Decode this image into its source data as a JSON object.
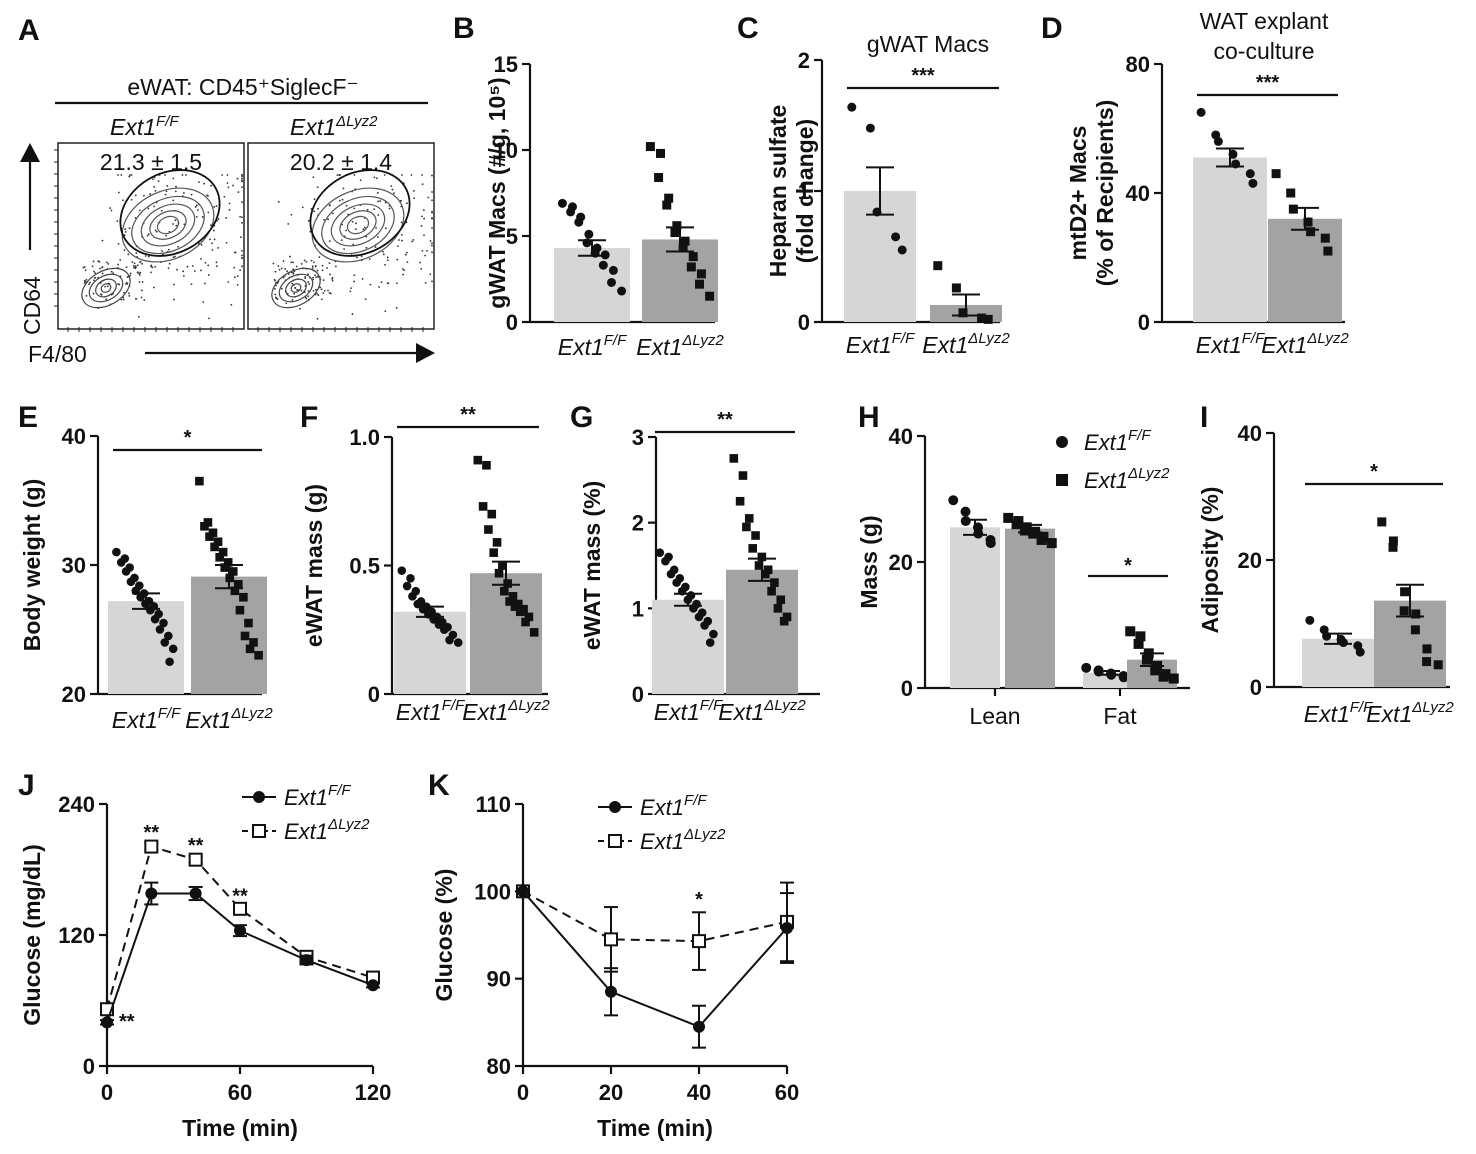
{
  "colors": {
    "light_bar": "#d6d6d6",
    "dark_bar": "#a3a3a3",
    "ink": "#111111"
  },
  "genotypes": {
    "ff_base": "Ext1",
    "ff_sup": "F/F",
    "ko_base": "Ext1",
    "ko_sup": "ΔLyz2"
  },
  "panel_a": {
    "letter": "A",
    "header": "eWAT: CD45⁺SiglecF⁻",
    "ylabel": "CD64",
    "xlabel": "F4/80",
    "left_pct": "21.3 ± 1.5",
    "right_pct": "20.2 ± 1.4"
  },
  "chart_data": [
    {
      "id": "B",
      "type": "bar",
      "letter": "B",
      "title": "",
      "ylabel": "gWAT Macs (#/g, 10⁵)",
      "ylim": [
        0,
        15
      ],
      "yticks": [
        0,
        5,
        10,
        15
      ],
      "categories": [
        "Ext1F/F",
        "Ext1ΔLyz2"
      ],
      "means": [
        4.3,
        4.8
      ],
      "sems": [
        0.45,
        0.7
      ],
      "points": [
        [
          6.9,
          6.7,
          6.4,
          6.1,
          5.8,
          5.1,
          4.6,
          4.3,
          4.0,
          3.9,
          3.3,
          3.0,
          2.3,
          1.8
        ],
        [
          10.2,
          9.8,
          8.4,
          7.2,
          6.8,
          5.6,
          5.2,
          4.7,
          4.3,
          3.8,
          3.2,
          2.8,
          2.2,
          1.5
        ]
      ],
      "sig": ""
    },
    {
      "id": "C",
      "type": "bar",
      "letter": "C",
      "title": "gWAT Macs",
      "ylabel": "Heparan sulfate (fold change)",
      "ylim": [
        0,
        2
      ],
      "yticks": [
        0,
        1,
        2
      ],
      "categories": [
        "Ext1F/F",
        "Ext1ΔLyz2"
      ],
      "means": [
        1.0,
        0.13
      ],
      "sems": [
        0.18,
        0.08
      ],
      "points": [
        [
          1.64,
          1.48,
          0.84,
          0.65,
          0.55
        ],
        [
          0.43,
          0.26,
          0.07,
          0.03,
          0.02
        ]
      ],
      "sig": "***"
    },
    {
      "id": "D",
      "type": "bar",
      "letter": "D",
      "title": "WAT explant co-culture",
      "ylabel": "mtD2+ Macs (% of Recipients)",
      "ylim": [
        0,
        80
      ],
      "yticks": [
        0,
        40,
        80
      ],
      "categories": [
        "Ext1F/F",
        "Ext1ΔLyz2"
      ],
      "means": [
        51,
        32
      ],
      "sems": [
        2.8,
        3.4
      ],
      "points": [
        [
          65,
          58,
          56,
          52,
          49,
          46,
          43
        ],
        [
          46,
          40,
          35,
          31,
          28,
          26,
          22
        ]
      ],
      "sig": "***"
    },
    {
      "id": "E",
      "type": "bar",
      "letter": "E",
      "title": "",
      "ylabel": "Body weight (g)",
      "ylim": [
        20,
        40
      ],
      "yticks": [
        20,
        30,
        40
      ],
      "categories": [
        "Ext1F/F",
        "Ext1ΔLyz2"
      ],
      "means": [
        27.2,
        29.1
      ],
      "sems": [
        0.6,
        0.9
      ],
      "points": [
        [
          31.0,
          30.5,
          30.2,
          29.8,
          29.5,
          29.0,
          28.7,
          28.4,
          28.0,
          27.8,
          27.5,
          27.2,
          27.0,
          26.8,
          26.5,
          26.2,
          25.8,
          25.5,
          25.0,
          24.5,
          24.0,
          23.5,
          22.5
        ],
        [
          36.5,
          33.3,
          33.0,
          32.5,
          32.2,
          31.8,
          31.4,
          31.0,
          30.6,
          30.2,
          29.8,
          29.5,
          29.0,
          28.5,
          28.0,
          27.5,
          26.5,
          25.5,
          24.5,
          24.0,
          23.5,
          23.0
        ]
      ],
      "sig": "*"
    },
    {
      "id": "F",
      "type": "bar",
      "letter": "F",
      "title": "",
      "ylabel": "eWAT mass (g)",
      "ylim": [
        0,
        1.0
      ],
      "yticks": [
        0,
        0.5,
        1.0
      ],
      "ytick_labels": [
        "0",
        "0.5",
        "1.0"
      ],
      "categories": [
        "Ext1F/F",
        "Ext1ΔLyz2"
      ],
      "means": [
        0.32,
        0.47
      ],
      "sems": [
        0.02,
        0.045
      ],
      "points": [
        [
          0.48,
          0.45,
          0.42,
          0.4,
          0.38,
          0.36,
          0.35,
          0.34,
          0.33,
          0.32,
          0.31,
          0.3,
          0.29,
          0.28,
          0.27,
          0.26,
          0.25,
          0.23,
          0.21,
          0.2
        ],
        [
          0.91,
          0.89,
          0.73,
          0.7,
          0.64,
          0.59,
          0.55,
          0.5,
          0.47,
          0.43,
          0.4,
          0.38,
          0.36,
          0.35,
          0.34,
          0.33,
          0.32,
          0.3,
          0.28,
          0.24
        ]
      ],
      "sig": "**"
    },
    {
      "id": "G",
      "type": "bar",
      "letter": "G",
      "title": "",
      "ylabel": "eWAT mass (%)",
      "ylim": [
        0,
        3
      ],
      "yticks": [
        0,
        1,
        2,
        3
      ],
      "categories": [
        "Ext1F/F",
        "Ext1ΔLyz2"
      ],
      "means": [
        1.1,
        1.45
      ],
      "sems": [
        0.07,
        0.13
      ],
      "points": [
        [
          1.65,
          1.6,
          1.55,
          1.45,
          1.4,
          1.35,
          1.3,
          1.25,
          1.2,
          1.15,
          1.1,
          1.05,
          1.0,
          0.95,
          0.9,
          0.85,
          0.8,
          0.7,
          0.6
        ],
        [
          2.75,
          2.55,
          2.25,
          2.05,
          1.95,
          1.85,
          1.7,
          1.6,
          1.5,
          1.45,
          1.4,
          1.3,
          1.2,
          1.1,
          1.0,
          0.9,
          0.85
        ]
      ],
      "sig": "**"
    },
    {
      "id": "H",
      "type": "grouped_bar",
      "letter": "H",
      "title": "",
      "ylabel": "Mass (g)",
      "ylim": [
        0,
        40
      ],
      "yticks": [
        0,
        20,
        40
      ],
      "groups": [
        "Lean",
        "Fat"
      ],
      "series": [
        {
          "name": "Ext1F/F",
          "means": [
            25.5,
            2.4
          ],
          "sems": [
            1.2,
            0.3
          ],
          "points": [
            [
              29.8,
              28.0,
              26.5,
              25.5,
              24.5,
              23.5,
              23.0
            ],
            [
              3.2,
              2.8,
              2.6,
              2.3,
              2.1,
              1.9,
              1.7
            ]
          ]
        },
        {
          "name": "Ext1ΔLyz2",
          "means": [
            25.3,
            4.5
          ],
          "sems": [
            0.6,
            1.0
          ],
          "points": [
            [
              27.0,
              26.5,
              26.0,
              25.5,
              25.0,
              24.8,
              24.5,
              24.0,
              23.5,
              23.0
            ],
            [
              9.0,
              8.2,
              7.0,
              5.5,
              4.5,
              3.5,
              2.8,
              2.2,
              1.8,
              1.5
            ]
          ]
        }
      ],
      "sig": "*"
    },
    {
      "id": "I",
      "type": "bar",
      "letter": "I",
      "title": "",
      "ylabel": "Adiposity (%)",
      "ylim": [
        0,
        40
      ],
      "yticks": [
        0,
        20,
        40
      ],
      "categories": [
        "Ext1F/F",
        "Ext1ΔLyz2"
      ],
      "means": [
        7.6,
        13.6
      ],
      "sems": [
        0.8,
        2.5
      ],
      "points": [
        [
          10.5,
          9.0,
          8.0,
          7.5,
          7.0,
          6.5,
          5.5
        ],
        [
          26.0,
          23.0,
          22.0,
          15.0,
          12.0,
          11.5,
          9.0,
          6.0,
          4.0,
          3.5
        ]
      ],
      "sig": "*"
    },
    {
      "id": "J",
      "type": "line",
      "letter": "J",
      "title": "",
      "ylabel": "Glucose (mg/dL)",
      "xlabel": "Time (min)",
      "xlim": [
        0,
        120
      ],
      "xticks": [
        0,
        60,
        120
      ],
      "ylim": [
        0,
        240
      ],
      "yticks": [
        0,
        120,
        240
      ],
      "x": [
        0,
        20,
        40,
        60,
        90,
        120
      ],
      "series": [
        {
          "name": "Ext1F/F",
          "marker": "filled-circle",
          "values": [
            40,
            158,
            158,
            124,
            97,
            74
          ],
          "errors": [
            2,
            10,
            6,
            5,
            4,
            2
          ]
        },
        {
          "name": "Ext1ΔLyz2",
          "marker": "open-square",
          "values": [
            52,
            201,
            189,
            144,
            100,
            81
          ],
          "errors": [
            3,
            3,
            3,
            3,
            3,
            2
          ]
        }
      ],
      "stars": [
        {
          "x": 0,
          "y": 42,
          "text": "**",
          "pos": "right"
        },
        {
          "x": 20,
          "y": 208,
          "text": "**",
          "pos": "above"
        },
        {
          "x": 40,
          "y": 196,
          "text": "**",
          "pos": "above"
        },
        {
          "x": 60,
          "y": 150,
          "text": "**",
          "pos": "above"
        }
      ]
    },
    {
      "id": "K",
      "type": "line",
      "letter": "K",
      "title": "",
      "ylabel": "Glucose (%)",
      "xlabel": "Time (min)",
      "xlim": [
        0,
        60
      ],
      "xticks": [
        0,
        20,
        40,
        60
      ],
      "ylim": [
        80,
        110
      ],
      "yticks": [
        80,
        90,
        100,
        110
      ],
      "x": [
        0,
        20,
        40,
        60
      ],
      "series": [
        {
          "name": "Ext1F/F",
          "marker": "filled-circle",
          "values": [
            100,
            88.5,
            84.5,
            95.8
          ],
          "errors": [
            0,
            2.7,
            2.4,
            4.0
          ]
        },
        {
          "name": "Ext1ΔLyz2",
          "marker": "open-square",
          "values": [
            100,
            94.5,
            94.3,
            96.5
          ],
          "errors": [
            0,
            3.7,
            3.3,
            4.5
          ]
        }
      ],
      "stars": [
        {
          "x": 40,
          "y": 98.3,
          "text": "*",
          "pos": "above"
        }
      ]
    }
  ]
}
